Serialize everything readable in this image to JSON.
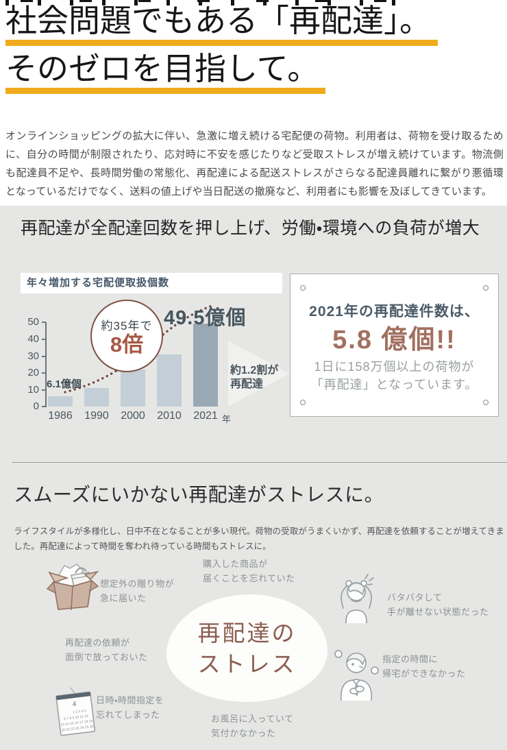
{
  "theme": {
    "accent_underline": "#f0ab1c",
    "section_bg": "#e6e7e5",
    "brown_accent": "#a1705f",
    "dark_slate": "#46586a"
  },
  "hero": {
    "title_line1": "社会問題でもある「再配達」。",
    "title_line2": "そのゼロを目指して。",
    "intro": "オンラインショッピングの拡大に伴い、急激に増え続ける宅配便の荷物。利用者は、荷物を受け取るために、自分の時間が制限されたり、応対時に不安を感じたりなど受取ストレスが増え続けています。物流側も配達員不足や、長時間労働の常態化、再配達による配送ストレスがさらなる配達員離れに繋がり悪循環となっているだけでなく、送料の値上げや当日配送の撤廃など、利用者にも影響を及ぼしてきています。"
  },
  "stats_section": {
    "heading": "再配達が全配達回数を押し上げ、労働・環境への負荷が増大",
    "card": {
      "title": "2021年の再配達件数は、",
      "headline": "5.8 億個!!",
      "sub1": "1日に158万個以上の荷物が",
      "sub2": "「再配達」となっています。"
    }
  },
  "chart_data": {
    "type": "bar",
    "title": "年々増加する宅配便取扱個数",
    "categories": [
      "1986",
      "1990",
      "2000",
      "2010",
      "2021"
    ],
    "values": [
      6.1,
      11,
      22,
      31,
      49.5
    ],
    "unit": "億個",
    "xlabel_suffix": "年",
    "ylim": [
      0,
      50
    ],
    "yticks": [
      0,
      10,
      20,
      30,
      40,
      50
    ],
    "grid": false,
    "legend": "none",
    "highlight_index": 4,
    "bar_color": "#c3ced7",
    "highlight_color": "#9aa8b4",
    "trend_color": "#74473f",
    "trend_style": "dotted-curve",
    "annotations": {
      "start_label": "6.1億個",
      "peak_label": "49.5億個",
      "circle_line1": "約35年で",
      "circle_line2": "8倍",
      "side_note_line1": "約1.2割が",
      "side_note_line2": "再配達"
    }
  },
  "stress_section": {
    "heading": "スムーズにいかない再配達がストレスに。",
    "body": "ライフスタイルが多様化し、日中不在となることが多い現代。荷物の受取がうまくいかず、再配達を依頼することが増えてきました。再配達によって時間を奪われ待っている時間もストレスに。",
    "bubble": {
      "line1": "再配達の",
      "line2": "ストレス"
    },
    "causes": [
      {
        "line1": "想定外の贈り物が",
        "line2": "急に届いた"
      },
      {
        "line1": "購入した商品が",
        "line2": "届くことを忘れていた"
      },
      {
        "line1": "再配達の依頼が",
        "line2": "面倒で放っておいた"
      },
      {
        "line1": "日時・時間指定を",
        "line2": "忘れてしまった"
      },
      {
        "line1": "お風呂に入っていて",
        "line2": "気付かなかった"
      },
      {
        "line1": "バタバタして",
        "line2": "手が離せない状態だった"
      },
      {
        "line1": "指定の時間に",
        "line2": "帰宅ができなかった"
      },
      {
        "line1": "4",
        "line2": ""
      }
    ]
  }
}
